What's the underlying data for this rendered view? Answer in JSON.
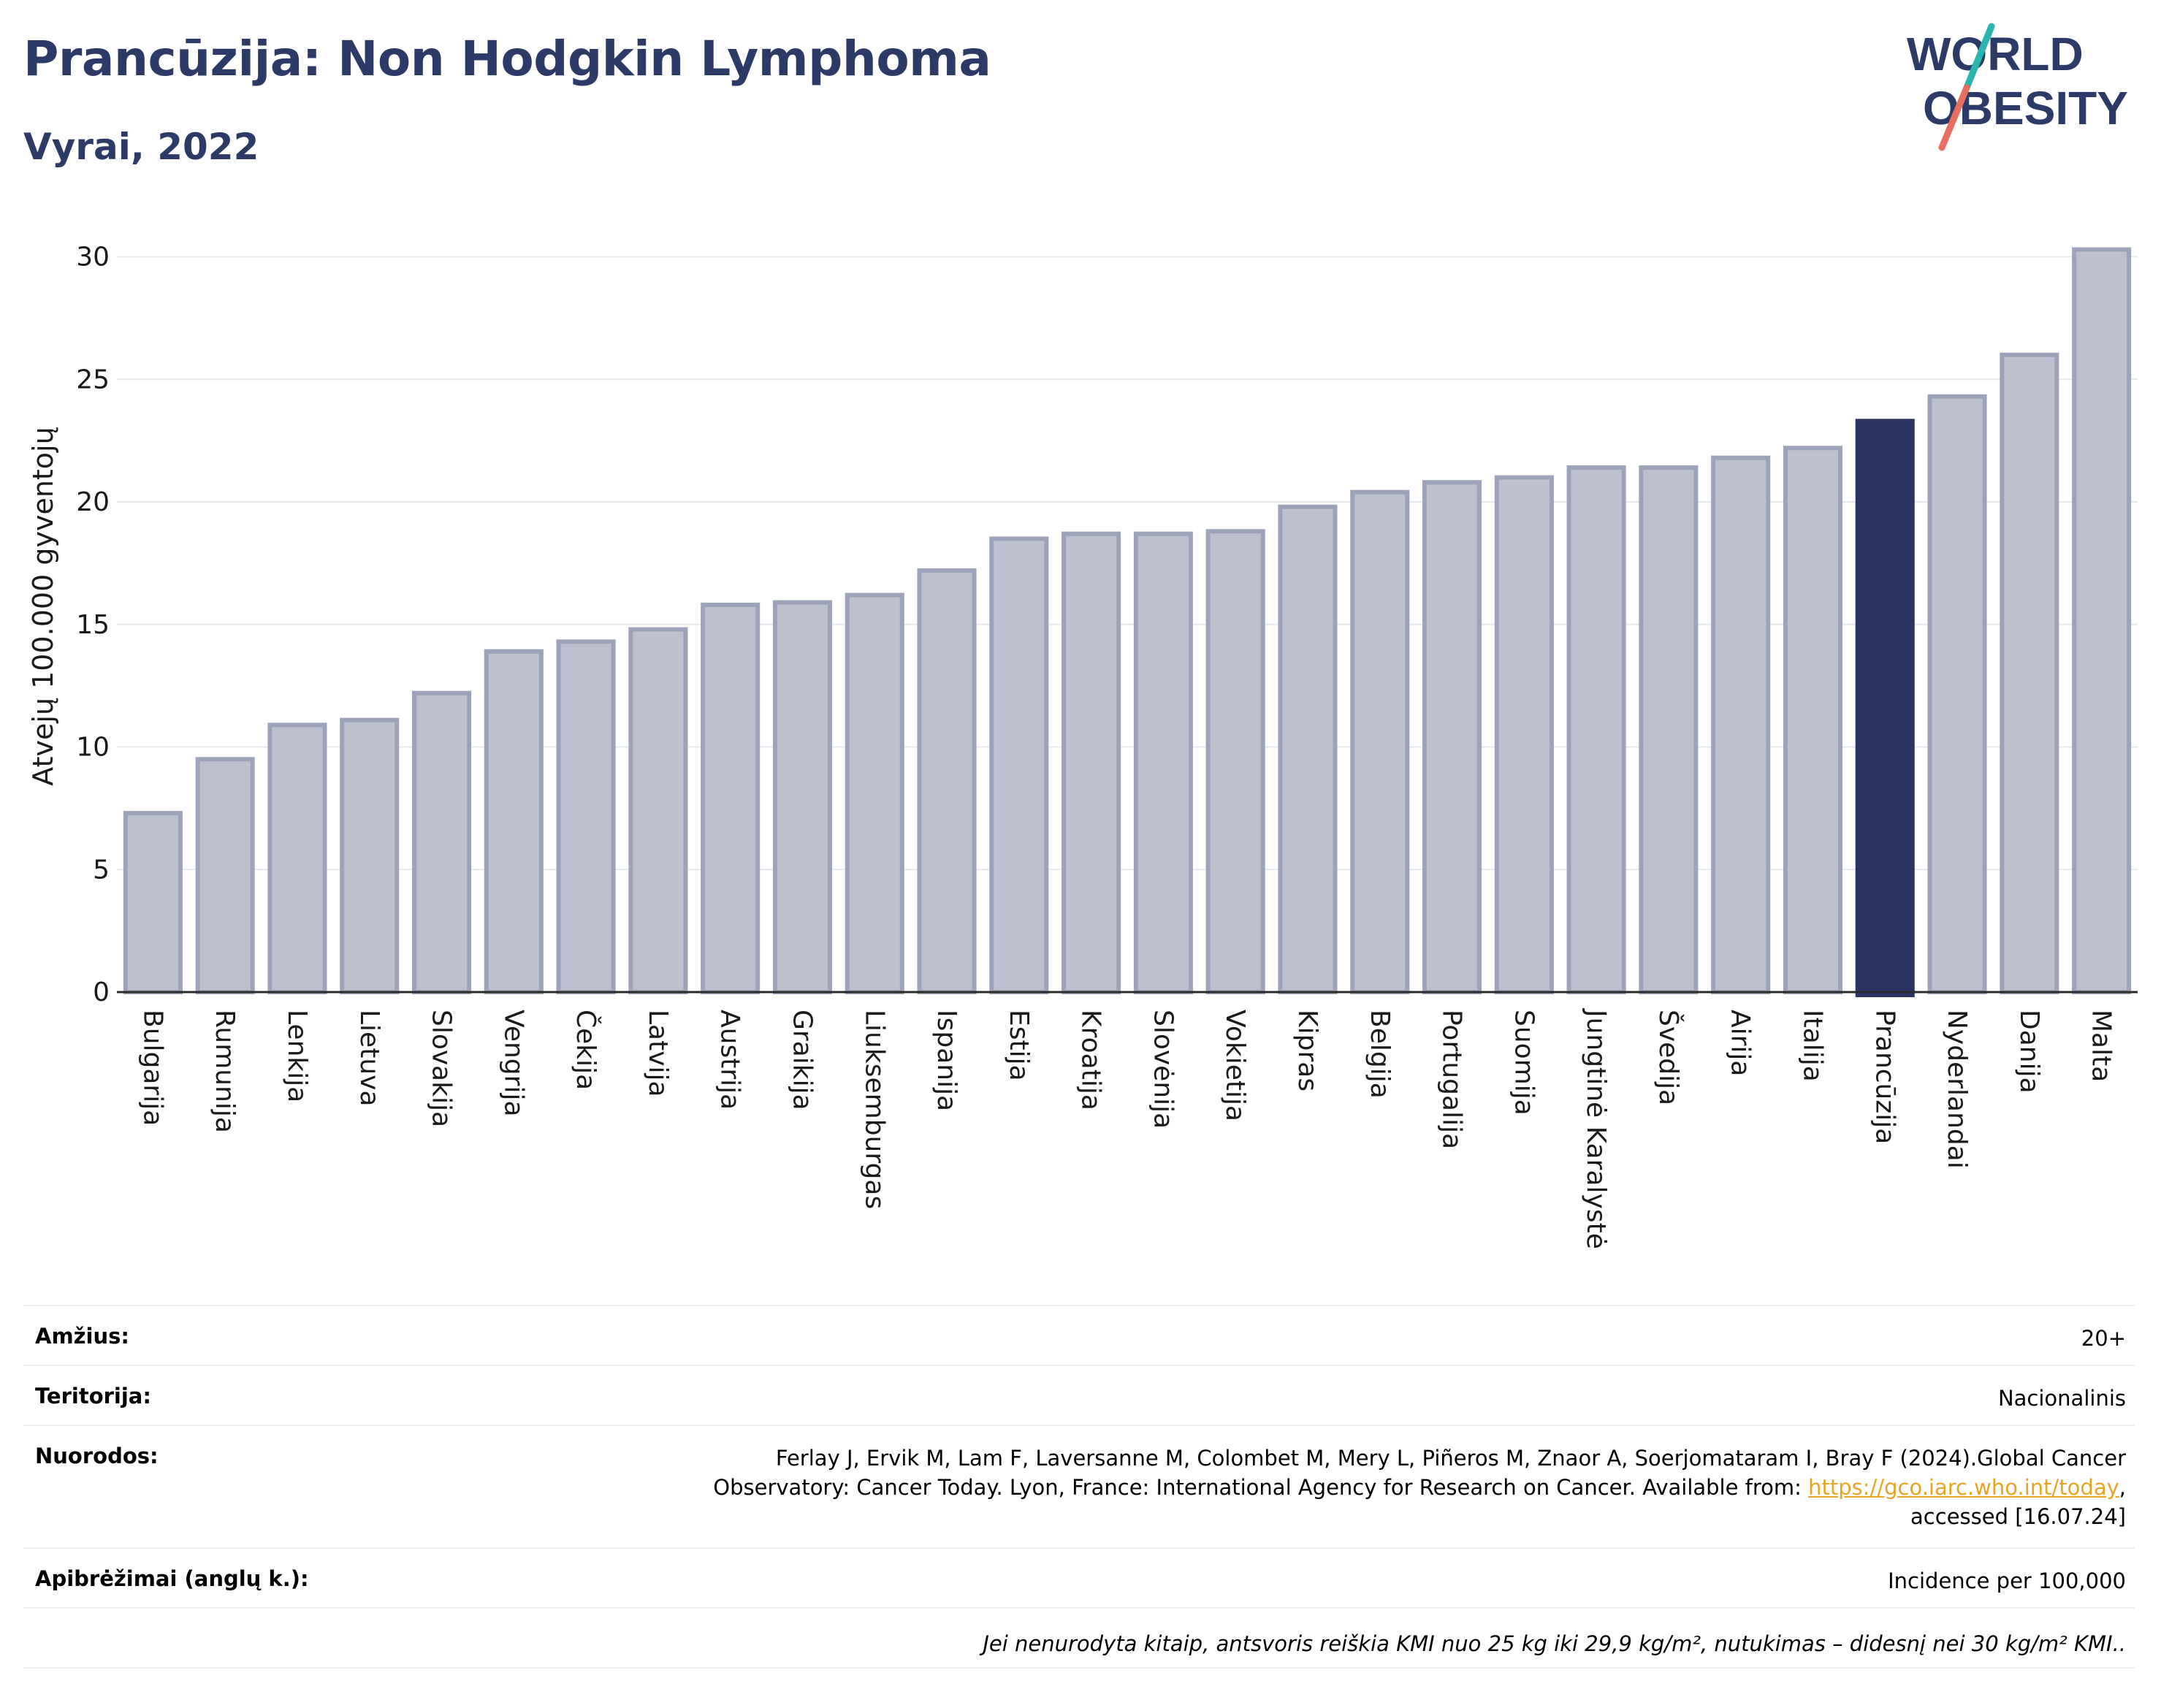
{
  "title": "Prancūzija: Non Hodgkin Lymphoma",
  "subtitle": "Vyrai, 2022",
  "logo": {
    "line1": "WORLD",
    "line2": "OBESITY"
  },
  "colors": {
    "default_bar": "#bdc1cf",
    "default_bar_edge": "#9da3ba",
    "highlight_bar": "#2b3561",
    "title": "#2b3a67",
    "logo_slash_top": "#2bb5b0",
    "logo_slash_bottom": "#e86f5f"
  },
  "chart_data": {
    "type": "bar",
    "ylabel": "Atvejų 100.000 gyventojų",
    "ylim": [
      0,
      31
    ],
    "yticks": [
      0,
      5,
      10,
      15,
      20,
      25,
      30
    ],
    "grid": true,
    "highlight": "Prancūzija",
    "categories": [
      "Bulgarija",
      "Rumunija",
      "Lenkija",
      "Lietuva",
      "Slovakija",
      "Vengrija",
      "Čekija",
      "Latvija",
      "Austrija",
      "Graikija",
      "Liuksemburgas",
      "Ispanija",
      "Estija",
      "Kroatija",
      "Slovėnija",
      "Vokietija",
      "Kipras",
      "Belgija",
      "Portugalija",
      "Suomija",
      "Jungtinė Karalystė",
      "Švedija",
      "Airija",
      "Italija",
      "Prancūzija",
      "Nyderlandai",
      "Danija",
      "Malta"
    ],
    "values": [
      7.3,
      9.5,
      10.9,
      11.1,
      12.2,
      13.9,
      14.3,
      14.8,
      15.8,
      15.9,
      16.2,
      17.2,
      18.5,
      18.7,
      18.7,
      18.8,
      19.8,
      20.4,
      20.8,
      21.0,
      21.4,
      21.4,
      21.8,
      22.2,
      23.3,
      24.3,
      26.0,
      30.3
    ]
  },
  "info": {
    "age_label": "Amžius:",
    "age_value": "20+",
    "territory_label": "Teritorija:",
    "territory_value": "Nacionalinis",
    "refs_label": "Nuorodos:",
    "refs_line1": "Ferlay J, Ervik M, Lam F, Laversanne M, Colombet M, Mery L, Piñeros M, Znaor A, Soerjomataram I, Bray F (2024).Global Cancer",
    "refs_line2_pre": "Observatory: Cancer Today. Lyon, France: International Agency for Research on Cancer. Available from: ",
    "refs_link": "https://gco.iarc.who.int/today",
    "refs_line2_post": ",",
    "refs_line3": "accessed [16.07.24]",
    "defs_label": "Apibrėžimai (anglų k.):",
    "defs_value": "Incidence per 100,000",
    "note": "Jei nenurodyta kitaip, antsvoris reiškia KMI nuo 25 kg iki 29,9 kg/m², nutukimas – didesnį nei 30 kg/m² KMI.."
  }
}
